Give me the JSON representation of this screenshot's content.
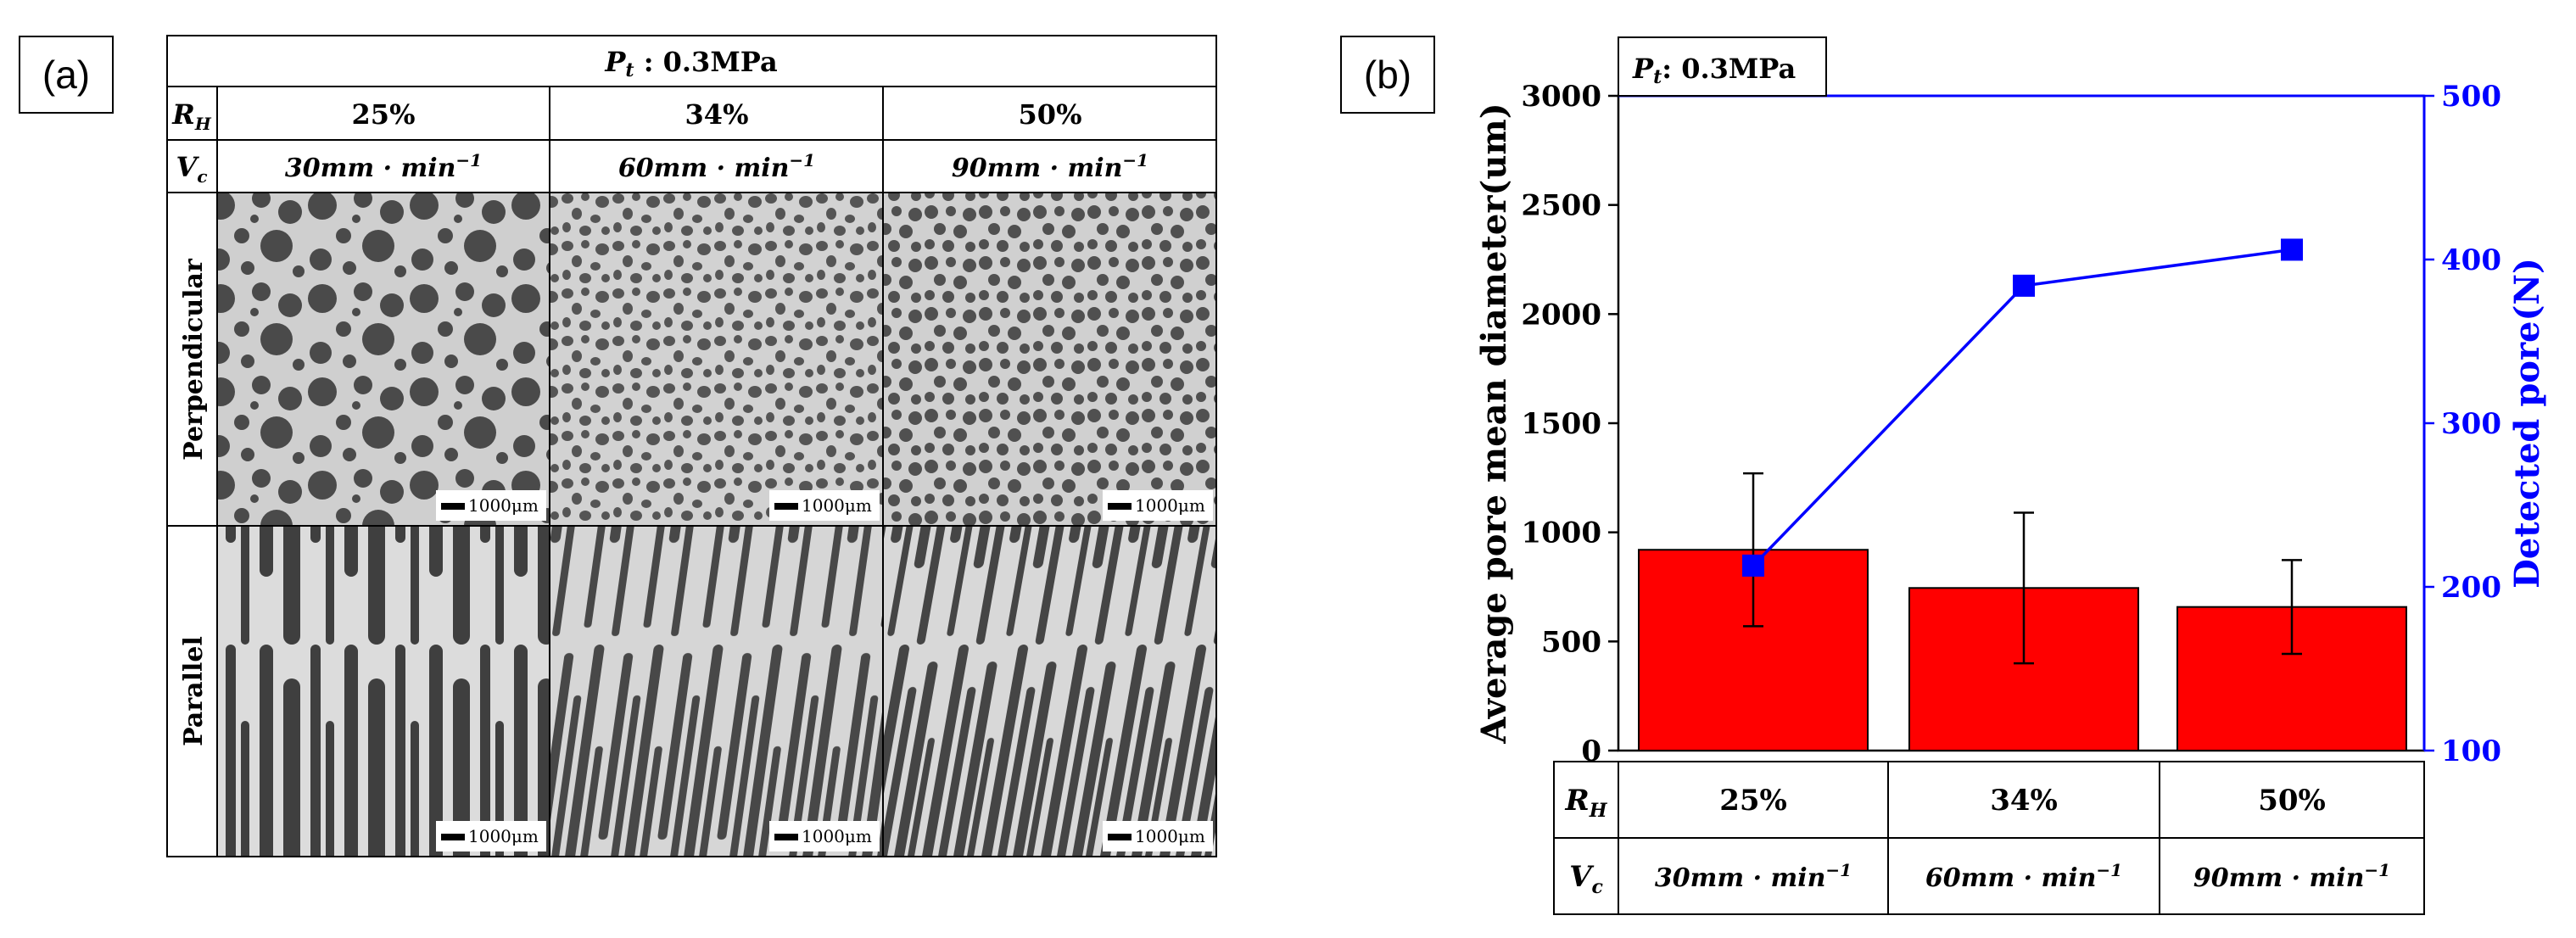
{
  "panel_a": {
    "label": "(a)",
    "header": "P_t : 0.3MPa",
    "header_var": "P",
    "header_sub": "t",
    "header_rest": " : 0.3MPa",
    "row_rh_var": "R",
    "row_rh_sub": "H",
    "row_vc_var": "V",
    "row_vc_sub": "c",
    "columns": [
      {
        "rh": "25%",
        "vc": "30mm · min",
        "vc_exp": "−1"
      },
      {
        "rh": "34%",
        "vc": "60mm · min",
        "vc_exp": "−1"
      },
      {
        "rh": "50%",
        "vc": "90mm · min",
        "vc_exp": "−1"
      }
    ],
    "rows": [
      "Perpendicular",
      "Parallel"
    ],
    "scale_bar": "1000μm"
  },
  "panel_b": {
    "label": "(b)",
    "legend_var": "P",
    "legend_sub": "t",
    "legend_rest": ": 0.3MPa",
    "table_rh_var": "R",
    "table_rh_sub": "H",
    "table_vc_var": "V",
    "table_vc_sub": "c",
    "table_columns": [
      {
        "rh": "25%",
        "vc": "30mm · min",
        "vc_exp": "−1"
      },
      {
        "rh": "34%",
        "vc": "60mm · min",
        "vc_exp": "−1"
      },
      {
        "rh": "50%",
        "vc": "90mm · min",
        "vc_exp": "−1"
      }
    ]
  },
  "chart_data": {
    "type": "bar",
    "title": "P_t: 0.3MPa",
    "categories": [
      "25%",
      "34%",
      "50%"
    ],
    "series": [
      {
        "name": "Average pore mean diameter(um)",
        "type": "bar",
        "axis": "left",
        "values": [
          920,
          745,
          658
        ],
        "error": [
          350,
          345,
          215
        ],
        "color": "#ff0000"
      },
      {
        "name": "Detected pore(N)",
        "type": "line",
        "axis": "right",
        "values": [
          213,
          384,
          406
        ],
        "color": "#0000ff"
      }
    ],
    "ylabel": "Average pore mean diameter(um)",
    "y2label": "Detected pore(N)",
    "ylim": [
      0,
      3000
    ],
    "y2lim": [
      100,
      500
    ],
    "yticks": [
      0,
      500,
      1000,
      1500,
      2000,
      2500,
      3000
    ],
    "y2ticks": [
      100,
      200,
      300,
      400,
      500
    ],
    "grid": false,
    "colors": {
      "bar": "#ff0000",
      "line": "#0000ff",
      "right_axis": "#0000ff"
    }
  }
}
